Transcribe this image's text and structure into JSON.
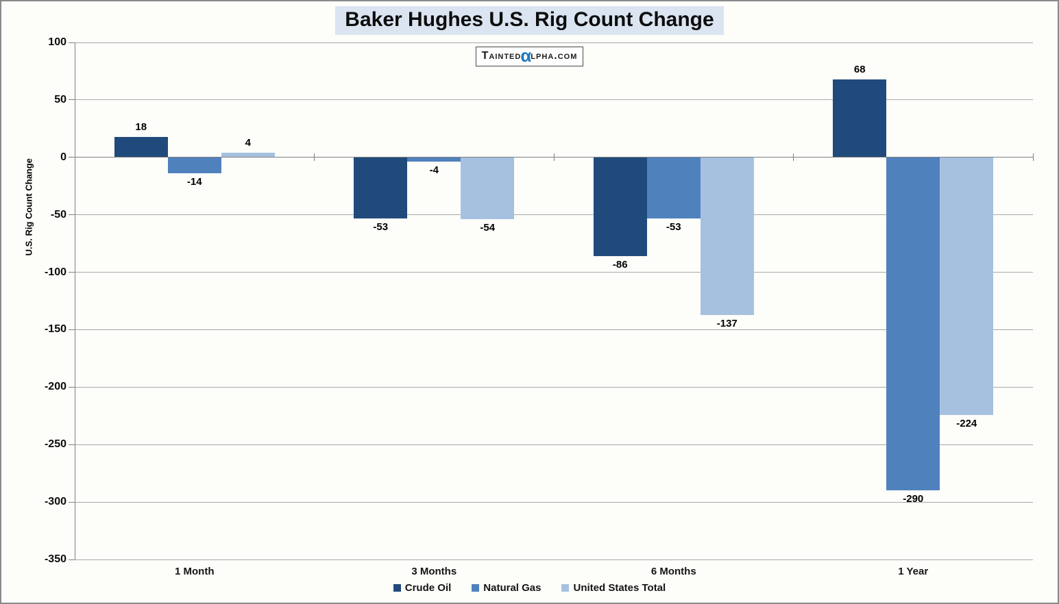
{
  "title": "Baker Hughes U.S. Rig Count Change",
  "logo": {
    "text_before_alpha": "Tainted",
    "alpha_symbol": "α",
    "text_after_alpha": "lpha.com"
  },
  "y_axis_title": "U.S. Rig Count Change",
  "chart_data": {
    "type": "bar",
    "title": "Baker Hughes U.S. Rig Count Change",
    "categories": [
      "1 Month",
      "3 Months",
      "6 Months",
      "1 Year"
    ],
    "series": [
      {
        "name": "Crude Oil",
        "color": "#204a7b",
        "values": [
          18,
          -53,
          -86,
          68
        ]
      },
      {
        "name": "Natural Gas",
        "color": "#4f81bd",
        "values": [
          -14,
          -4,
          -53,
          -290
        ]
      },
      {
        "name": "United States Total",
        "color": "#a6c1e0",
        "values": [
          4,
          -54,
          -137,
          -224
        ]
      }
    ],
    "xlabel": "",
    "ylabel": "U.S. Rig Count Change",
    "ylim": [
      -350,
      100
    ],
    "ytick_step": 50,
    "grid": true,
    "legend_position": "bottom",
    "bar_value_labels": true
  }
}
